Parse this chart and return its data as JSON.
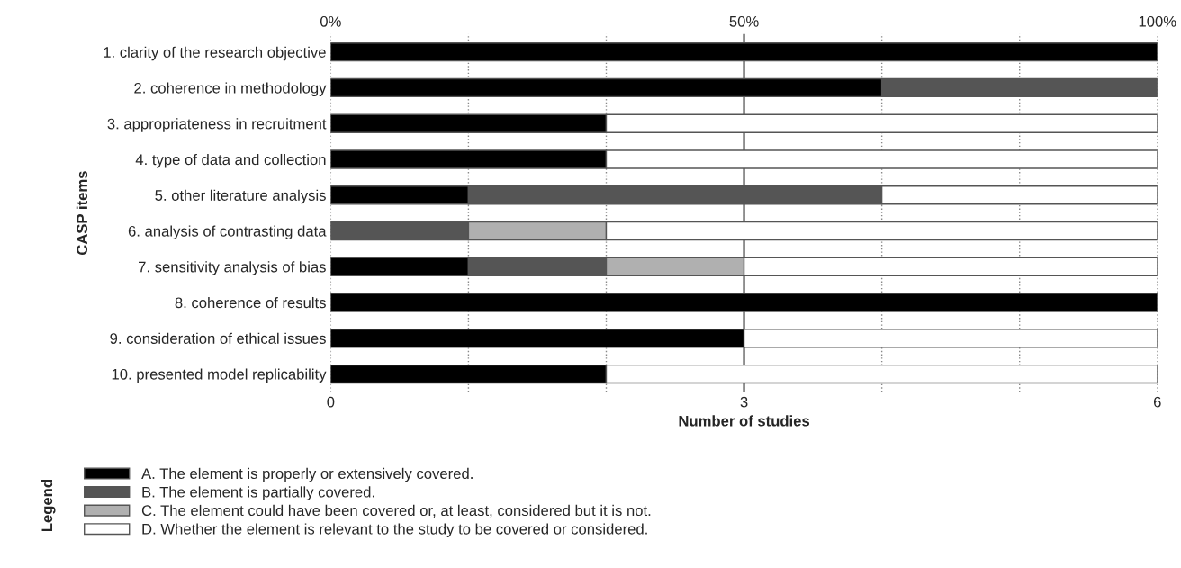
{
  "chart_data": {
    "type": "bar",
    "orientation": "horizontal",
    "stacked": true,
    "categories": [
      "1. clarity of the research objective",
      "2. coherence in methodology",
      "3. appropriateness in recruitment",
      "4. type of data and collection",
      "5. other literature analysis",
      "6. analysis of contrasting data",
      "7. sensitivity analysis of bias",
      "8. coherence of results",
      "9. consideration of ethical issues",
      "10. presented model replicability"
    ],
    "series": [
      {
        "name": "A. The element is properly or extensively covered.",
        "color": "#000000",
        "values": [
          6,
          4,
          2,
          2,
          1,
          0,
          1,
          6,
          3,
          2
        ]
      },
      {
        "name": "B. The element is partially covered.",
        "color": "#555555",
        "values": [
          0,
          2,
          0,
          0,
          3,
          1,
          1,
          0,
          0,
          0
        ]
      },
      {
        "name": "C. The element could have been covered or, at least, considered but it is not.",
        "color": "#b0b0b0",
        "values": [
          0,
          0,
          0,
          0,
          0,
          1,
          1,
          0,
          0,
          0
        ]
      },
      {
        "name": "D. Whether the element is relevant to the study to be covered or considered.",
        "color": "#ffffff",
        "values": [
          0,
          0,
          4,
          4,
          2,
          4,
          3,
          0,
          3,
          4
        ]
      }
    ],
    "xlim": [
      0,
      6
    ],
    "xticks": [
      0,
      {
        "value": 1,
        "label": null
      },
      {
        "value": 2,
        "label": null
      },
      3,
      {
        "value": 4,
        "label": null
      },
      {
        "value": 5,
        "label": null
      },
      6
    ],
    "x2lim": [
      0,
      100
    ],
    "x2ticks": [
      {
        "value": 0,
        "label": "0%"
      },
      {
        "value": 50,
        "label": "50%"
      },
      {
        "value": 100,
        "label": "100%"
      }
    ],
    "xlabel": "Number of studies",
    "ylabel": "CASP items",
    "legend_title": "Legend",
    "legend": "bottom",
    "grid": "x",
    "ref_lines": [
      {
        "axis": "x",
        "value": 3,
        "color": "#888888",
        "line_style": "solid"
      }
    ]
  }
}
